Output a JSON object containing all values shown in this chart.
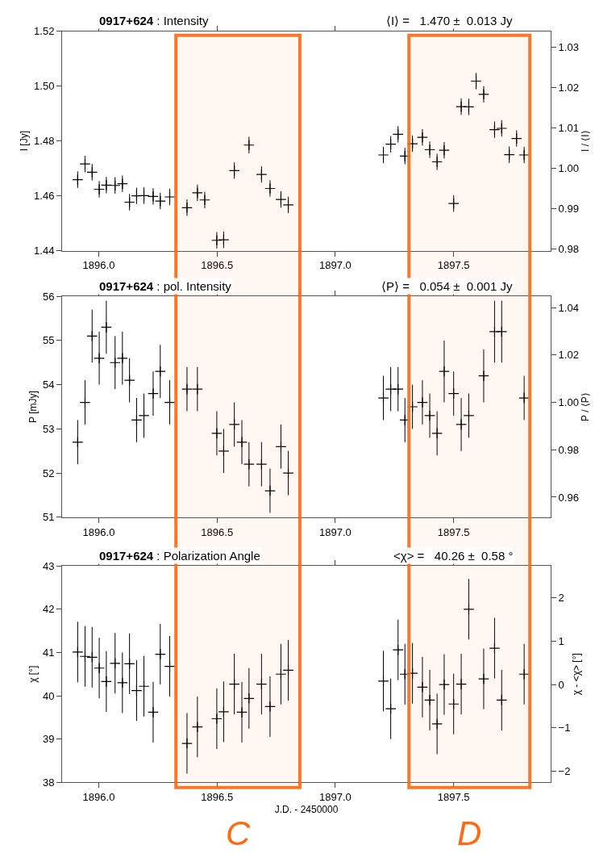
{
  "chart_data": [
    {
      "type": "scatter",
      "title": "0917+624 : Intensity",
      "subtitle": "⟨I⟩ =   1.470 ±  0.013 Jy",
      "ylabel": "I [Jy]",
      "y2label": "I / ⟨I⟩",
      "marker": "cross",
      "xlim": [
        1895.845,
        1897.91
      ],
      "xticks": [
        {
          "value": 1896.0,
          "label": "1896.0"
        },
        {
          "value": 1896.5,
          "label": "1896.5"
        },
        {
          "value": 1897.0,
          "label": "1897.0"
        },
        {
          "value": 1897.5,
          "label": "1897.5"
        }
      ],
      "ylim": [
        1.44,
        1.52
      ],
      "yticks": [
        1.44,
        1.46,
        1.48,
        {
          "value": 1.5,
          "label": "1.50"
        },
        1.52
      ],
      "y2lim": [
        0.9796,
        1.034
      ],
      "y2ticks": [
        0.98,
        0.99,
        {
          "value": 1.0,
          "label": "1.00"
        },
        1.01,
        1.02,
        1.03
      ],
      "series": [
        {
          "color": "#000000",
          "x": [
            1895.911,
            1895.942,
            1895.972,
            1896.002,
            1896.032,
            1896.069,
            1896.1,
            1896.13,
            1896.16,
            1896.191,
            1896.23,
            1896.26,
            1896.3,
            1896.373,
            1896.417,
            1896.448,
            1896.499,
            1896.528,
            1896.573,
            1896.635,
            1896.688,
            1896.724,
            1896.77,
            1896.801,
            1897.203,
            1897.234,
            1897.265,
            1897.294,
            1897.326,
            1897.368,
            1897.399,
            1897.43,
            1897.46,
            1897.5,
            1897.532,
            1897.564,
            1897.595,
            1897.627,
            1897.673,
            1897.703,
            1897.735,
            1897.766,
            1897.798
          ],
          "values": [
            1.4659,
            1.4716,
            1.4686,
            1.4624,
            1.4639,
            1.4638,
            1.4644,
            1.4577,
            1.46,
            1.4601,
            1.4598,
            1.4581,
            1.4596,
            1.4557,
            1.4611,
            1.4585,
            1.4438,
            1.444,
            1.4692,
            1.4785,
            1.4678,
            1.4627,
            1.4587,
            1.4567,
            1.4749,
            1.4788,
            1.4824,
            1.4745,
            1.479,
            1.4813,
            1.4768,
            1.4724,
            1.4766,
            1.4572,
            1.4925,
            1.4924,
            1.5018,
            1.497,
            1.4841,
            1.4846,
            1.475,
            1.4809,
            1.4749
          ],
          "errors": [
            0.003,
            0.003,
            0.003,
            0.003,
            0.003,
            0.003,
            0.003,
            0.003,
            0.003,
            0.003,
            0.003,
            0.003,
            0.003,
            0.003,
            0.003,
            0.003,
            0.003,
            0.003,
            0.003,
            0.003,
            0.003,
            0.003,
            0.003,
            0.003,
            0.003,
            0.003,
            0.003,
            0.003,
            0.003,
            0.003,
            0.003,
            0.003,
            0.003,
            0.003,
            0.003,
            0.003,
            0.003,
            0.003,
            0.003,
            0.003,
            0.003,
            0.003,
            0.003
          ]
        }
      ]
    },
    {
      "type": "scatter",
      "title": "0917+624 : pol. Intensity",
      "subtitle": "⟨P⟩ =   0.054 ±  0.001 Jy",
      "ylabel": "P [mJy]",
      "y2label": "P / ⟨P⟩",
      "marker": "cross",
      "xlim": [
        1895.845,
        1897.91
      ],
      "xticks": [
        {
          "value": 1896.0,
          "label": "1896.0"
        },
        {
          "value": 1896.5,
          "label": "1896.5"
        },
        {
          "value": 1897.0,
          "label": "1897.0"
        },
        {
          "value": 1897.5,
          "label": "1897.5"
        }
      ],
      "ylim": [
        51,
        56
      ],
      "yticks": [
        51,
        52,
        53,
        54,
        55,
        56
      ],
      "y2lim": [
        0.9515,
        1.0448
      ],
      "y2ticks": [
        0.96,
        0.98,
        {
          "value": 1.0,
          "label": "1.00"
        },
        1.02,
        1.04
      ],
      "series": [
        {
          "color": "#000000",
          "x": [
            1895.911,
            1895.942,
            1895.972,
            1896.002,
            1896.032,
            1896.069,
            1896.1,
            1896.13,
            1896.16,
            1896.191,
            1896.23,
            1896.26,
            1896.3,
            1896.373,
            1896.417,
            1896.499,
            1896.528,
            1896.573,
            1896.605,
            1896.635,
            1896.688,
            1896.724,
            1896.77,
            1896.801,
            1897.203,
            1897.234,
            1897.265,
            1897.294,
            1897.326,
            1897.368,
            1897.399,
            1897.43,
            1897.46,
            1897.5,
            1897.532,
            1897.564,
            1897.627,
            1897.673,
            1897.703,
            1897.798
          ],
          "values": [
            52.7,
            53.6,
            55.1,
            54.6,
            55.3,
            54.5,
            54.6,
            54.1,
            53.2,
            53.3,
            53.8,
            54.3,
            53.6,
            53.9,
            53.9,
            52.9,
            52.5,
            53.1,
            52.7,
            52.2,
            52.2,
            51.6,
            52.6,
            52.0,
            53.7,
            53.9,
            53.9,
            53.2,
            53.5,
            53.6,
            53.3,
            52.9,
            54.3,
            53.8,
            53.1,
            53.3,
            54.2,
            55.2,
            55.2,
            53.7
          ],
          "errors": [
            0.5,
            0.5,
            0.6,
            0.6,
            0.6,
            0.6,
            0.6,
            0.5,
            0.5,
            0.5,
            0.5,
            0.6,
            0.5,
            0.5,
            0.5,
            0.5,
            0.5,
            0.5,
            0.5,
            0.5,
            0.5,
            0.5,
            0.5,
            0.5,
            0.5,
            0.5,
            0.5,
            0.5,
            0.5,
            0.5,
            0.5,
            0.5,
            0.7,
            0.5,
            0.6,
            0.5,
            0.6,
            0.7,
            0.7,
            0.5
          ]
        }
      ]
    },
    {
      "type": "scatter",
      "title": "0917+624 : Polarization Angle",
      "subtitle": "<χ> =   40.26 ±  0.58 °",
      "xlabel": "J.D. - 2450000",
      "ylabel": "χ [°]",
      "y2label": "χ - <χ> [°]",
      "marker": "cross",
      "xlim": [
        1895.845,
        1897.91
      ],
      "xticks": [
        {
          "value": 1896.0,
          "label": "1896.0"
        },
        {
          "value": 1896.5,
          "label": "1896.5"
        },
        {
          "value": 1897.0,
          "label": "1897.0"
        },
        {
          "value": 1897.5,
          "label": "1897.5"
        }
      ],
      "ylim": [
        38,
        43
      ],
      "yticks": [
        38,
        39,
        40,
        41,
        42,
        43
      ],
      "y2lim": [
        -2.26,
        2.74
      ],
      "y2ticks": [
        {
          "value": -2,
          "label": "−2"
        },
        {
          "value": -1,
          "label": "−1"
        },
        0,
        1,
        2
      ],
      "bands": [
        {
          "axis": "x",
          "from": 1896.326,
          "to": 1896.85,
          "label": "C",
          "color": "#ff6a13"
        },
        {
          "axis": "x",
          "from": 1897.311,
          "to": 1897.822,
          "label": "D",
          "color": "#ff6a13"
        }
      ],
      "series": [
        {
          "color": "#000000",
          "x": [
            1895.911,
            1895.942,
            1895.972,
            1896.002,
            1896.032,
            1896.069,
            1896.1,
            1896.13,
            1896.16,
            1896.191,
            1896.23,
            1896.26,
            1896.3,
            1896.373,
            1896.417,
            1896.499,
            1896.528,
            1896.573,
            1896.605,
            1896.635,
            1896.688,
            1896.724,
            1896.77,
            1896.801,
            1897.203,
            1897.234,
            1897.265,
            1897.294,
            1897.326,
            1897.368,
            1897.399,
            1897.43,
            1897.46,
            1897.5,
            1897.532,
            1897.564,
            1897.627,
            1897.673,
            1897.703,
            1897.798
          ],
          "values": [
            41.01,
            40.91,
            40.89,
            40.64,
            40.33,
            40.75,
            40.3,
            40.74,
            40.12,
            40.22,
            39.62,
            40.96,
            40.68,
            38.9,
            39.28,
            39.47,
            39.63,
            40.27,
            39.62,
            39.94,
            40.27,
            39.75,
            40.5,
            40.59,
            40.34,
            39.7,
            41.06,
            40.5,
            40.52,
            40.2,
            39.9,
            39.35,
            40.26,
            39.81,
            40.27,
            42.0,
            40.39,
            41.1,
            39.9,
            40.5
          ],
          "errors": [
            0.7,
            0.7,
            0.7,
            0.7,
            0.7,
            0.7,
            0.7,
            0.7,
            0.7,
            0.7,
            0.7,
            0.7,
            0.7,
            0.7,
            0.7,
            0.7,
            0.7,
            0.7,
            0.7,
            0.7,
            0.7,
            0.7,
            0.7,
            0.7,
            0.7,
            0.7,
            0.7,
            0.7,
            0.7,
            0.7,
            0.7,
            0.7,
            0.7,
            0.7,
            0.7,
            0.7,
            0.7,
            0.7,
            0.7,
            0.7
          ]
        }
      ]
    }
  ]
}
